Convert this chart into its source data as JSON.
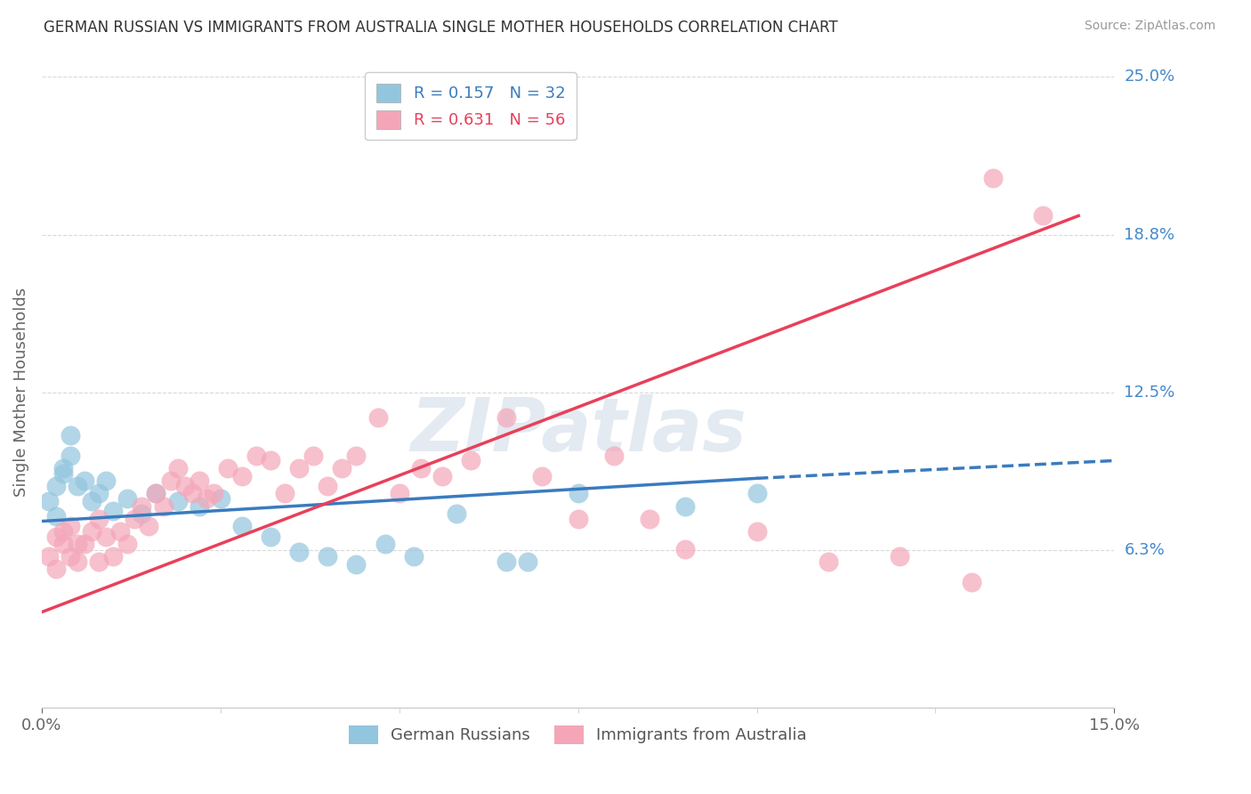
{
  "title": "GERMAN RUSSIAN VS IMMIGRANTS FROM AUSTRALIA SINGLE MOTHER HOUSEHOLDS CORRELATION CHART",
  "source": "Source: ZipAtlas.com",
  "ylabel": "Single Mother Households",
  "xlim": [
    0.0,
    0.15
  ],
  "ylim": [
    0.0,
    0.25
  ],
  "yticks": [
    0.0625,
    0.125,
    0.1875,
    0.25
  ],
  "ytick_labels": [
    "6.3%",
    "12.5%",
    "18.8%",
    "25.0%"
  ],
  "blue_R": 0.157,
  "blue_N": 32,
  "pink_R": 0.631,
  "pink_N": 56,
  "blue_color": "#92c5de",
  "pink_color": "#f4a6b8",
  "blue_line_color": "#3a7bbf",
  "pink_line_color": "#e8405a",
  "legend_label_blue": "German Russians",
  "legend_label_pink": "Immigrants from Australia",
  "blue_line_x0": 0.0,
  "blue_line_y0": 0.074,
  "blue_line_x1": 0.1,
  "blue_line_y1": 0.091,
  "blue_line_dash_x1": 0.15,
  "blue_line_dash_y1": 0.098,
  "pink_line_x0": 0.0,
  "pink_line_y0": 0.038,
  "pink_line_x1": 0.145,
  "pink_line_y1": 0.195,
  "blue_x": [
    0.001,
    0.002,
    0.002,
    0.003,
    0.003,
    0.004,
    0.004,
    0.005,
    0.006,
    0.007,
    0.008,
    0.009,
    0.01,
    0.012,
    0.014,
    0.016,
    0.019,
    0.022,
    0.025,
    0.028,
    0.032,
    0.036,
    0.04,
    0.044,
    0.048,
    0.052,
    0.058,
    0.065,
    0.068,
    0.075,
    0.09,
    0.1
  ],
  "blue_y": [
    0.082,
    0.076,
    0.088,
    0.093,
    0.095,
    0.1,
    0.108,
    0.088,
    0.09,
    0.082,
    0.085,
    0.09,
    0.078,
    0.083,
    0.077,
    0.085,
    0.082,
    0.08,
    0.083,
    0.072,
    0.068,
    0.062,
    0.06,
    0.057,
    0.065,
    0.06,
    0.077,
    0.058,
    0.058,
    0.085,
    0.08,
    0.085
  ],
  "pink_x": [
    0.001,
    0.002,
    0.002,
    0.003,
    0.003,
    0.004,
    0.004,
    0.005,
    0.005,
    0.006,
    0.007,
    0.008,
    0.008,
    0.009,
    0.01,
    0.011,
    0.012,
    0.013,
    0.014,
    0.015,
    0.016,
    0.017,
    0.018,
    0.019,
    0.02,
    0.021,
    0.022,
    0.023,
    0.024,
    0.026,
    0.028,
    0.03,
    0.032,
    0.034,
    0.036,
    0.038,
    0.04,
    0.042,
    0.044,
    0.047,
    0.05,
    0.053,
    0.056,
    0.06,
    0.065,
    0.07,
    0.075,
    0.08,
    0.085,
    0.09,
    0.1,
    0.11,
    0.12,
    0.13,
    0.133,
    0.14
  ],
  "pink_y": [
    0.06,
    0.055,
    0.068,
    0.07,
    0.065,
    0.072,
    0.06,
    0.065,
    0.058,
    0.065,
    0.07,
    0.058,
    0.075,
    0.068,
    0.06,
    0.07,
    0.065,
    0.075,
    0.08,
    0.072,
    0.085,
    0.08,
    0.09,
    0.095,
    0.088,
    0.085,
    0.09,
    0.083,
    0.085,
    0.095,
    0.092,
    0.1,
    0.098,
    0.085,
    0.095,
    0.1,
    0.088,
    0.095,
    0.1,
    0.115,
    0.085,
    0.095,
    0.092,
    0.098,
    0.115,
    0.092,
    0.075,
    0.1,
    0.075,
    0.063,
    0.07,
    0.058,
    0.06,
    0.05,
    0.21,
    0.195
  ],
  "watermark": "ZIPatlas",
  "background_color": "#ffffff",
  "grid_color": "#d8d8d8"
}
